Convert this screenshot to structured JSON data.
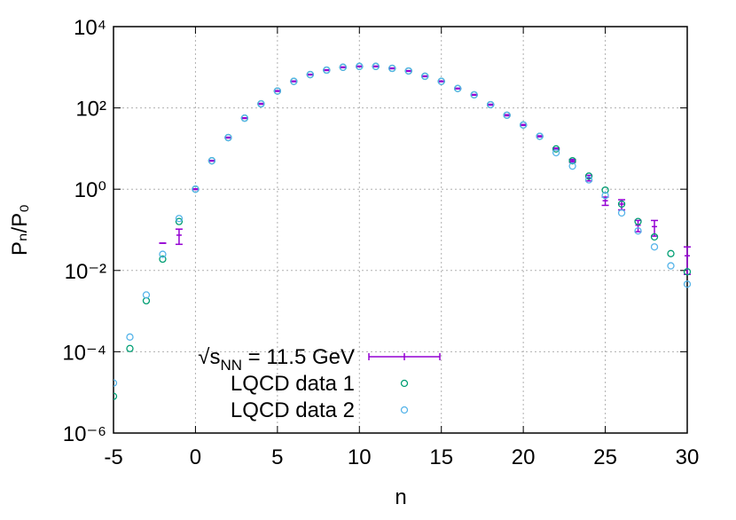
{
  "chart_data": {
    "type": "scatter",
    "x_label": "n",
    "y_label": "Pₙ/P₀",
    "log_y": true,
    "grid": true,
    "xlim": [
      -5,
      30
    ],
    "xticks": [
      -5,
      0,
      5,
      10,
      15,
      20,
      25,
      30
    ],
    "ylim": [
      1e-06,
      10000
    ],
    "yticks": [
      {
        "value": 1e-06,
        "label": "10⁻⁶"
      },
      {
        "value": 0.0001,
        "label": "10⁻⁴"
      },
      {
        "value": 0.01,
        "label": "10⁻²"
      },
      {
        "value": 1,
        "label": "10⁰"
      },
      {
        "value": 100,
        "label": "10²"
      },
      {
        "value": 10000,
        "label": "10⁴"
      }
    ],
    "series": [
      {
        "name": "√sNN = 11.5 GeV",
        "style": "errorbar",
        "color": "#9400d3",
        "x": [
          -2,
          -1,
          0,
          1,
          2,
          3,
          4,
          5,
          6,
          7,
          8,
          9,
          10,
          11,
          12,
          13,
          14,
          15,
          16,
          17,
          18,
          19,
          20,
          21,
          22,
          23,
          24,
          25,
          26,
          27,
          28,
          30
        ],
        "values": [
          0.047,
          0.074,
          1,
          5.0,
          18.6,
          56,
          126,
          260,
          450,
          660,
          850,
          1000,
          1050,
          1050,
          940,
          810,
          600,
          450,
          300,
          210,
          120,
          66,
          38,
          20,
          9.8,
          5.0,
          1.9,
          0.52,
          0.43,
          0.13,
          0.12,
          0.023
        ],
        "errors": [
          0,
          0.03,
          0.02,
          0.1,
          0.4,
          1,
          3,
          5,
          9,
          13,
          17,
          20,
          21,
          21,
          19,
          16,
          12,
          9,
          6,
          4,
          3,
          2,
          1,
          0.6,
          0.5,
          0.4,
          0.3,
          0.12,
          0.12,
          0.04,
          0.05,
          0.015
        ]
      },
      {
        "name": "LQCD data 1",
        "style": "circle",
        "color": "#009e73",
        "x": [
          -5,
          -4,
          -3,
          -2,
          -1,
          0,
          1,
          2,
          3,
          4,
          5,
          6,
          7,
          8,
          9,
          10,
          11,
          12,
          13,
          14,
          15,
          16,
          17,
          18,
          19,
          20,
          21,
          22,
          23,
          24,
          25,
          26,
          27,
          28,
          29,
          30
        ],
        "values": [
          8e-06,
          0.00012,
          0.0018,
          0.019,
          0.16,
          1,
          5.0,
          18.6,
          56,
          126,
          260,
          450,
          660,
          850,
          1000,
          1050,
          1050,
          940,
          810,
          600,
          450,
          300,
          210,
          120,
          66,
          38,
          20,
          9.8,
          5.0,
          2.1,
          0.95,
          0.43,
          0.16,
          0.067,
          0.026,
          0.0093
        ]
      },
      {
        "name": "LQCD data 2",
        "style": "circle",
        "color": "#56b4e9",
        "x": [
          -5,
          -4,
          -3,
          -2,
          -1,
          0,
          1,
          2,
          3,
          4,
          5,
          6,
          7,
          8,
          9,
          10,
          11,
          12,
          13,
          14,
          15,
          16,
          17,
          18,
          19,
          20,
          21,
          22,
          23,
          24,
          25,
          26,
          27,
          28,
          29,
          30
        ],
        "values": [
          1.7e-05,
          0.00023,
          0.0025,
          0.025,
          0.19,
          1,
          5.0,
          18.6,
          56,
          126,
          260,
          450,
          660,
          850,
          1000,
          1050,
          1050,
          940,
          810,
          600,
          450,
          300,
          210,
          120,
          66,
          38,
          20,
          7.9,
          3.7,
          1.7,
          0.7,
          0.26,
          0.094,
          0.038,
          0.013,
          0.0046
        ]
      }
    ]
  }
}
